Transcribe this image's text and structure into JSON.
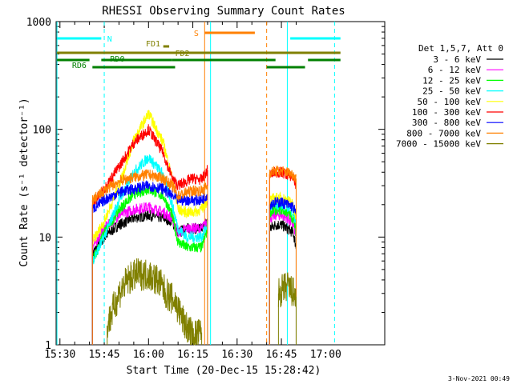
{
  "chart_data": {
    "type": "line",
    "title": "RHESSI Observing Summary Count Rates",
    "xlabel": "Start Time (20-Dec-15 15:28:42)",
    "ylabel": "Count Rate (s⁻¹ detector⁻¹)",
    "yscale": "log",
    "xlim": [
      "15:28:42",
      "17:20:00"
    ],
    "ylim": [
      1,
      1000
    ],
    "x_ticks": [
      "15:30",
      "15:45",
      "16:00",
      "16:15",
      "16:30",
      "16:45",
      "17:00"
    ],
    "y_ticks": [
      "1",
      "10",
      "100",
      "1000"
    ],
    "legend_title": "Det 1,5,7, Att 0",
    "legend_position": "right",
    "timestamp": "3-Nov-2021 00:49",
    "series": [
      {
        "name": "3 - 6 keV",
        "color": "#000000",
        "x": [
          "15:41",
          "15:45",
          "15:50",
          "15:55",
          "16:00",
          "16:05",
          "16:08",
          "16:10",
          "16:13",
          "16:15",
          "16:18",
          "16:20",
          "16:41",
          "16:43",
          "16:45",
          "16:47",
          "16:49",
          "16:50"
        ],
        "y": [
          7,
          10,
          13,
          15,
          16,
          15,
          14,
          11,
          12,
          12,
          12,
          14,
          12,
          13,
          13,
          12,
          11,
          8
        ]
      },
      {
        "name": "6 - 12 keV",
        "color": "#ff00ff",
        "x": [
          "15:41",
          "15:45",
          "15:50",
          "15:55",
          "16:00",
          "16:05",
          "16:08",
          "16:10",
          "16:13",
          "16:15",
          "16:18",
          "16:20",
          "16:41",
          "16:43",
          "16:45",
          "16:47",
          "16:49",
          "16:50"
        ],
        "y": [
          8,
          12,
          16,
          18,
          19,
          17,
          15,
          11,
          12,
          12,
          12,
          14,
          15,
          16,
          16,
          15,
          13,
          10
        ]
      },
      {
        "name": "12 - 25 keV",
        "color": "#00ff00",
        "x": [
          "15:41",
          "15:45",
          "15:50",
          "15:55",
          "16:00",
          "16:05",
          "16:08",
          "16:10",
          "16:13",
          "16:15",
          "16:18",
          "16:20",
          "16:41",
          "16:43",
          "16:45",
          "16:47",
          "16:49",
          "16:50"
        ],
        "y": [
          6,
          11,
          18,
          25,
          28,
          24,
          16,
          9,
          8,
          8,
          8,
          12,
          17,
          18,
          18,
          17,
          15,
          11
        ]
      },
      {
        "name": "25 - 50 keV",
        "color": "#00ffff",
        "x": [
          "15:41",
          "15:45",
          "15:50",
          "15:55",
          "16:00",
          "16:05",
          "16:08",
          "16:10",
          "16:13",
          "16:15",
          "16:18",
          "16:20",
          "16:41",
          "16:43",
          "16:45",
          "16:47",
          "16:49",
          "16:50"
        ],
        "y": [
          6,
          10,
          22,
          40,
          55,
          38,
          20,
          12,
          10,
          10,
          10,
          13,
          19,
          20,
          20,
          19,
          17,
          13
        ]
      },
      {
        "name": "50 - 100 keV",
        "color": "#ffff00",
        "x": [
          "15:41",
          "15:45",
          "15:50",
          "15:55",
          "16:00",
          "16:05",
          "16:08",
          "16:10",
          "16:13",
          "16:15",
          "16:18",
          "16:20",
          "16:41",
          "16:43",
          "16:45",
          "16:47",
          "16:49",
          "16:50"
        ],
        "y": [
          9,
          14,
          30,
          80,
          140,
          75,
          35,
          18,
          17,
          17,
          18,
          22,
          22,
          23,
          23,
          22,
          20,
          15
        ]
      },
      {
        "name": "100 - 300 keV",
        "color": "#ff0000",
        "x": [
          "15:41",
          "15:45",
          "15:50",
          "15:55",
          "16:00",
          "16:05",
          "16:08",
          "16:10",
          "16:13",
          "16:15",
          "16:18",
          "16:20",
          "16:41",
          "16:43",
          "16:45",
          "16:47",
          "16:49",
          "16:50"
        ],
        "y": [
          20,
          28,
          45,
          75,
          100,
          60,
          35,
          30,
          33,
          35,
          34,
          42,
          38,
          40,
          40,
          38,
          36,
          30
        ]
      },
      {
        "name": "300 - 800 keV",
        "color": "#0000ff",
        "x": [
          "15:41",
          "15:45",
          "15:50",
          "15:55",
          "16:00",
          "16:05",
          "16:08",
          "16:10",
          "16:13",
          "16:15",
          "16:18",
          "16:20",
          "16:41",
          "16:43",
          "16:45",
          "16:47",
          "16:49",
          "16:50"
        ],
        "y": [
          18,
          22,
          26,
          28,
          30,
          28,
          24,
          22,
          22,
          22,
          22,
          25,
          20,
          21,
          21,
          20,
          19,
          16
        ]
      },
      {
        "name": "800 - 7000 keV",
        "color": "#ff8000",
        "x": [
          "15:41",
          "15:45",
          "15:50",
          "15:55",
          "16:00",
          "16:05",
          "16:08",
          "16:10",
          "16:13",
          "16:15",
          "16:18",
          "16:20",
          "16:41",
          "16:43",
          "16:45",
          "16:47",
          "16:49",
          "16:50"
        ],
        "y": [
          22,
          27,
          33,
          36,
          38,
          35,
          30,
          24,
          26,
          27,
          27,
          30,
          40,
          41,
          41,
          40,
          38,
          35
        ]
      },
      {
        "name": "7000 - 15000 keV",
        "color": "#808000",
        "x": [
          "15:46",
          "15:50",
          "15:53",
          "15:56",
          "16:00",
          "16:03",
          "16:06",
          "16:09",
          "16:12",
          "16:15",
          "16:18",
          "16:44",
          "16:47",
          "16:50"
        ],
        "y": [
          1.5,
          3,
          4,
          4.5,
          4.5,
          4,
          3,
          2.5,
          1.6,
          1.2,
          1.3,
          3,
          3.5,
          2.8
        ]
      }
    ],
    "state_bars": [
      {
        "label": "N",
        "color": "#00ffff",
        "segments": [
          [
            "15:29",
            "15:44"
          ],
          [
            "16:48",
            "17:05"
          ]
        ]
      },
      {
        "label": "S",
        "color": "#ff8000",
        "segments": [
          [
            "16:19",
            "16:36"
          ]
        ]
      },
      {
        "label": "FD1",
        "color": "#808000",
        "segments": [
          [
            "16:05",
            "16:07"
          ]
        ]
      },
      {
        "label": "FD2",
        "color": "#808000",
        "segments": [
          [
            "15:29",
            "17:05"
          ]
        ]
      },
      {
        "label": "RD0",
        "color": "#008000",
        "segments": [
          [
            "15:29",
            "15:40"
          ],
          [
            "15:44",
            "16:08"
          ],
          [
            "16:08",
            "16:43"
          ],
          [
            "16:54",
            "17:05"
          ]
        ]
      },
      {
        "label": "RD6",
        "color": "#008000",
        "segments": [
          [
            "15:41",
            "16:09"
          ],
          [
            "16:40",
            "16:53"
          ]
        ]
      }
    ]
  }
}
